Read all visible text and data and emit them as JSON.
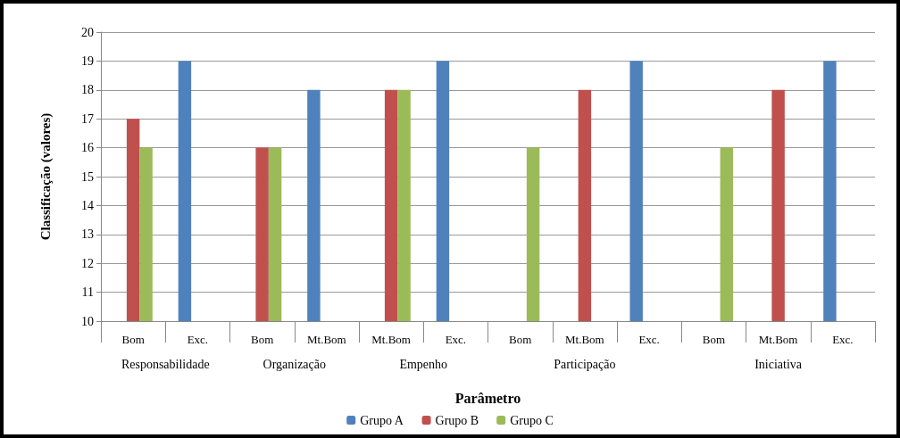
{
  "chart_data": {
    "type": "bar",
    "xlabel": "Parâmetro",
    "ylabel": "Classificação (valores)",
    "categories": [
      "Bom",
      "Exc.",
      "Bom",
      "Mt.Bom",
      "Mt.Bom",
      "Exc.",
      "Bom",
      "Mt.Bom",
      "Exc.",
      "Bom",
      "Mt.Bom",
      "Exc."
    ],
    "annotations": [
      "Responsabilidade",
      "Organização",
      "Empenho",
      "Participação",
      "Iniciativa"
    ],
    "series": [
      {
        "name": "Grupo A",
        "color": "#4f81bd",
        "values": [
          null,
          19,
          null,
          18,
          null,
          19,
          null,
          null,
          19,
          null,
          null,
          19
        ]
      },
      {
        "name": "Grupo B",
        "color": "#c0504d",
        "values": [
          17,
          null,
          16,
          null,
          18,
          null,
          null,
          18,
          null,
          null,
          18,
          null
        ]
      },
      {
        "name": "Grupo C",
        "color": "#9bbb59",
        "values": [
          16,
          null,
          16,
          null,
          18,
          null,
          16,
          null,
          null,
          16,
          null,
          null
        ]
      }
    ],
    "ylim": [
      10,
      20
    ],
    "yticks": [
      10,
      11,
      12,
      13,
      14,
      15,
      16,
      17,
      18,
      19,
      20
    ],
    "grid": "y",
    "legend": "bottom"
  }
}
